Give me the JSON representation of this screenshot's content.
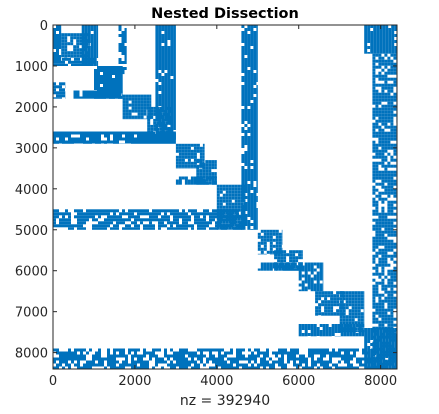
{
  "chart_data": {
    "type": "scatter",
    "subtype": "sparsity-pattern",
    "title": "Nested Dissection",
    "xlabel": "nz = 392940",
    "ylabel": "",
    "xlim": [
      0,
      8400
    ],
    "ylim": [
      0,
      8400
    ],
    "y_reversed": true,
    "x_ticks": [
      "0",
      "2000",
      "4000",
      "6000",
      "8000"
    ],
    "y_ticks": [
      "0",
      "1000",
      "2000",
      "3000",
      "4000",
      "5000",
      "6000",
      "7000",
      "8000"
    ],
    "x_tick_values": [
      0,
      2000,
      4000,
      6000,
      8000
    ],
    "y_tick_values": [
      0,
      1000,
      2000,
      3000,
      4000,
      5000,
      6000,
      7000,
      8000
    ],
    "marker_color": "#0072BD",
    "grid": false,
    "nonzero_regions": [
      {
        "x": [
          0,
          200
        ],
        "y": [
          0,
          900
        ],
        "density": 0.9
      },
      {
        "x": [
          200,
          900
        ],
        "y": [
          200,
          800
        ],
        "density": 0.85
      },
      {
        "x": [
          0,
          1000
        ],
        "y": [
          800,
          1000
        ],
        "density": 0.9
      },
      {
        "x": [
          700,
          1100
        ],
        "y": [
          0,
          1000
        ],
        "density": 0.95
      },
      {
        "x": [
          0,
          300
        ],
        "y": [
          1400,
          1800
        ],
        "density": 0.8
      },
      {
        "x": [
          1000,
          1700
        ],
        "y": [
          1000,
          1800
        ],
        "density": 0.9
      },
      {
        "x": [
          500,
          1700
        ],
        "y": [
          1600,
          1800
        ],
        "density": 0.9
      },
      {
        "x": [
          1600,
          1800
        ],
        "y": [
          0,
          1200
        ],
        "density": 0.7
      },
      {
        "x": [
          1700,
          2400
        ],
        "y": [
          1700,
          2300
        ],
        "density": 0.9
      },
      {
        "x": [
          2300,
          2900
        ],
        "y": [
          2000,
          2800
        ],
        "density": 0.9
      },
      {
        "x": [
          2500,
          3000
        ],
        "y": [
          0,
          2800
        ],
        "density": 0.95
      },
      {
        "x": [
          0,
          3000
        ],
        "y": [
          2600,
          2900
        ],
        "density": 0.9
      },
      {
        "x": [
          3000,
          3700
        ],
        "y": [
          2900,
          3500
        ],
        "density": 0.9
      },
      {
        "x": [
          3500,
          4000
        ],
        "y": [
          3300,
          3900
        ],
        "density": 0.9
      },
      {
        "x": [
          3000,
          4000
        ],
        "y": [
          3700,
          3900
        ],
        "density": 0.85
      },
      {
        "x": [
          4000,
          4700
        ],
        "y": [
          3900,
          5000
        ],
        "density": 0.95
      },
      {
        "x": [
          4600,
          5000
        ],
        "y": [
          0,
          5000
        ],
        "density": 0.9
      },
      {
        "x": [
          0,
          4700
        ],
        "y": [
          4500,
          5000
        ],
        "density": 0.75
      },
      {
        "x": [
          5000,
          5600
        ],
        "y": [
          5000,
          5600
        ],
        "density": 0.85
      },
      {
        "x": [
          5400,
          6100
        ],
        "y": [
          5500,
          6000
        ],
        "density": 0.85
      },
      {
        "x": [
          5000,
          6100
        ],
        "y": [
          5800,
          6000
        ],
        "density": 0.8
      },
      {
        "x": [
          6000,
          6600
        ],
        "y": [
          5800,
          6500
        ],
        "density": 0.9
      },
      {
        "x": [
          6400,
          7100
        ],
        "y": [
          6500,
          7100
        ],
        "density": 0.9
      },
      {
        "x": [
          7000,
          7600
        ],
        "y": [
          6500,
          7500
        ],
        "density": 0.9
      },
      {
        "x": [
          6000,
          7600
        ],
        "y": [
          7300,
          7600
        ],
        "density": 0.85
      },
      {
        "x": [
          7600,
          8400
        ],
        "y": [
          0,
          700
        ],
        "density": 0.9
      },
      {
        "x": [
          7800,
          8400
        ],
        "y": [
          700,
          8400
        ],
        "density": 0.75
      },
      {
        "x": [
          0,
          7800
        ],
        "y": [
          7900,
          8400
        ],
        "density": 0.7
      },
      {
        "x": [
          7600,
          8400
        ],
        "y": [
          7400,
          8400
        ],
        "density": 0.95
      }
    ]
  }
}
